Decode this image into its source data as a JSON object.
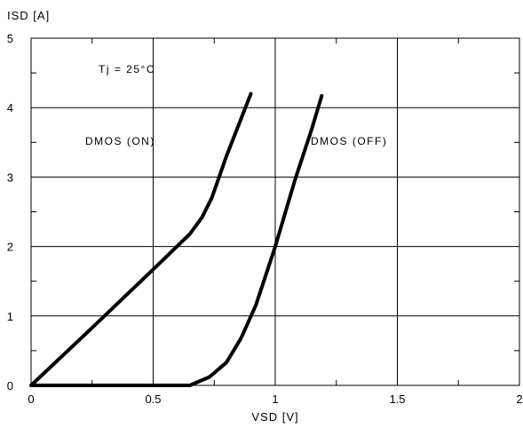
{
  "chart_data": {
    "type": "line",
    "title": "",
    "xlabel": "VSD [V]",
    "ylabel": "ISD [A]",
    "xlim": [
      0,
      2
    ],
    "ylim": [
      0,
      5
    ],
    "xticks": [
      "0",
      "0.5",
      "1",
      "1.5",
      "2"
    ],
    "yticks": [
      "0",
      "1",
      "2",
      "3",
      "4",
      "5"
    ],
    "grid": true,
    "annotations": {
      "condition": "Tj = 25°C"
    },
    "series": [
      {
        "name": "DMOS (ON)",
        "points": [
          [
            0,
            0
          ],
          [
            0.25,
            0.83
          ],
          [
            0.5,
            1.67
          ],
          [
            0.65,
            2.18
          ],
          [
            0.7,
            2.42
          ],
          [
            0.74,
            2.7
          ],
          [
            0.8,
            3.3
          ],
          [
            0.9,
            4.2
          ]
        ]
      },
      {
        "name": "DMOS (OFF)",
        "points": [
          [
            0,
            0
          ],
          [
            0.65,
            0.0
          ],
          [
            0.73,
            0.12
          ],
          [
            0.8,
            0.33
          ],
          [
            0.86,
            0.68
          ],
          [
            0.92,
            1.15
          ],
          [
            1.0,
            2.0
          ],
          [
            1.08,
            2.95
          ],
          [
            1.15,
            3.7
          ],
          [
            1.19,
            4.17
          ]
        ]
      }
    ]
  }
}
